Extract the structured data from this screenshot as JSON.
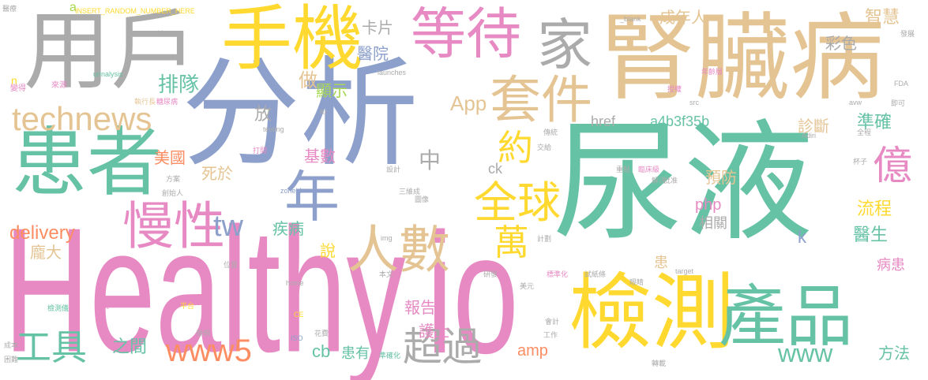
{
  "colors": {
    "gray": "#ababab",
    "teal": "#66c2a5",
    "pink": "#e78ac3",
    "yellow": "#ffd92f",
    "tan": "#e5c494",
    "blue": "#8da0cb",
    "orange": "#fc8d62",
    "green": "#a6d854"
  },
  "words": [
    {
      "text": "尿液",
      "color": "teal",
      "weight": 1
    },
    {
      "text": "分析",
      "color": "blue",
      "weight": 0.95
    },
    {
      "text": "Healthy",
      "color": "pink",
      "weight": 0.8
    },
    {
      "text": "io",
      "color": "pink",
      "weight": 0.8
    },
    {
      "text": "腎臟病",
      "color": "tan",
      "weight": 0.75
    },
    {
      "text": "用戶",
      "color": "gray",
      "weight": 0.7
    },
    {
      "text": "患者",
      "color": "teal",
      "weight": 0.65
    },
    {
      "text": "手機",
      "color": "yellow",
      "weight": 0.6
    },
    {
      "text": "檢測",
      "color": "yellow",
      "weight": 0.6
    },
    {
      "text": "產品",
      "color": "teal",
      "weight": 0.55
    },
    {
      "text": "等待",
      "color": "pink",
      "weight": 0.5
    },
    {
      "text": "家",
      "color": "gray",
      "weight": 0.45
    },
    {
      "text": "套件",
      "color": "tan",
      "weight": 0.45
    },
    {
      "text": "年",
      "color": "blue",
      "weight": 0.45
    },
    {
      "text": "人數",
      "color": "tan",
      "weight": 0.45
    },
    {
      "text": "慢性",
      "color": "pink",
      "weight": 0.4
    },
    {
      "text": "全球",
      "color": "yellow",
      "weight": 0.4
    },
    {
      "text": "technews",
      "color": "tan",
      "weight": 0.3
    },
    {
      "text": "億",
      "color": "pink",
      "weight": 0.3
    },
    {
      "text": "約",
      "color": "yellow",
      "weight": 0.3
    },
    {
      "text": "萬",
      "color": "yellow",
      "weight": 0.3
    },
    {
      "text": "超過",
      "color": "gray",
      "weight": 0.3
    },
    {
      "text": "www5",
      "color": "orange",
      "weight": 0.3
    },
    {
      "text": "工具",
      "color": "teal",
      "weight": 0.3
    },
    {
      "text": "www",
      "color": "teal",
      "weight": 0.25
    },
    {
      "text": "tw",
      "color": "blue",
      "weight": 0.22
    },
    {
      "text": "App",
      "color": "tan",
      "weight": 0.2
    },
    {
      "text": "中",
      "color": "gray",
      "weight": 0.2
    },
    {
      "text": "排隊",
      "color": "teal",
      "weight": 0.18
    },
    {
      "text": "delivery",
      "color": "orange",
      "weight": 0.18
    },
    {
      "text": "卡片",
      "color": "gray",
      "weight": 0.16
    },
    {
      "text": "醫院",
      "color": "blue",
      "weight": 0.16
    },
    {
      "text": "成年人",
      "color": "tan",
      "weight": 0.15
    },
    {
      "text": "彩色",
      "color": "gray",
      "weight": 0.15
    },
    {
      "text": "智慧",
      "color": "tan",
      "weight": 0.15
    },
    {
      "text": "做",
      "color": "tan",
      "weight": 0.15
    },
    {
      "text": "顯示",
      "color": "green",
      "weight": 0.14
    },
    {
      "text": "放",
      "color": "gray",
      "weight": 0.14
    },
    {
      "text": "美國",
      "color": "orange",
      "weight": 0.14
    },
    {
      "text": "死於",
      "color": "tan",
      "weight": 0.14
    },
    {
      "text": "疾病",
      "color": "teal",
      "weight": 0.14
    },
    {
      "text": "基數",
      "color": "pink",
      "weight": 0.13
    },
    {
      "text": "href",
      "color": "gray",
      "weight": 0.13
    },
    {
      "text": "a4b3f35b",
      "color": "teal",
      "weight": 0.13
    },
    {
      "text": "診斷",
      "color": "tan",
      "weight": 0.13
    },
    {
      "text": "準確",
      "color": "teal",
      "weight": 0.13
    },
    {
      "text": "預防",
      "color": "tan",
      "weight": 0.13
    },
    {
      "text": "php",
      "color": "pink",
      "weight": 0.13
    },
    {
      "text": "流程",
      "color": "yellow",
      "weight": 0.13
    },
    {
      "text": "醫生",
      "color": "teal",
      "weight": 0.13
    },
    {
      "text": "相關",
      "color": "gray",
      "weight": 0.12
    },
    {
      "text": "k",
      "color": "blue",
      "weight": 0.12
    },
    {
      "text": "說",
      "color": "yellow",
      "weight": 0.12
    },
    {
      "text": "龐大",
      "color": "tan",
      "weight": 0.12
    },
    {
      "text": "報告",
      "color": "pink",
      "weight": 0.12
    },
    {
      "text": "護士",
      "color": "pink",
      "weight": 0.12
    },
    {
      "text": "患",
      "color": "tan",
      "weight": 0.12
    },
    {
      "text": "病患",
      "color": "pink",
      "weight": 0.12
    },
    {
      "text": "之間",
      "color": "teal",
      "weight": 0.12
    },
    {
      "text": "cb",
      "color": "teal",
      "weight": 0.12
    },
    {
      "text": "患有",
      "color": "teal",
      "weight": 0.12
    },
    {
      "text": "amp",
      "color": "orange",
      "weight": 0.12
    },
    {
      "text": "方法",
      "color": "teal",
      "weight": 0.12
    },
    {
      "text": "ck",
      "color": "gray",
      "weight": 0.11
    },
    {
      "text": "a",
      "color": "green",
      "weight": 0.1
    },
    {
      "text": "n",
      "color": "yellow",
      "weight": 0.08
    },
    {
      "text": "INSERT_RANDOM_NUMBER_HERE",
      "color": "yellow",
      "weight": 0.05
    },
    {
      "text": "_blank",
      "color": "gray",
      "weight": 0.05
    },
    {
      "text": "urinalysis",
      "color": "teal",
      "weight": 0.05
    },
    {
      "text": "Yonatan",
      "color": "gray",
      "weight": 0.05
    },
    {
      "text": "launches",
      "color": "gray",
      "weight": 0.05
    },
    {
      "text": "testing",
      "color": "gray",
      "weight": 0.05
    },
    {
      "text": "zoneid",
      "color": "blue",
      "weight": 0.05
    },
    {
      "text": "FDA",
      "color": "gray",
      "weight": 0.05
    },
    {
      "text": "avw",
      "color": "gray",
      "weight": 0.05
    },
    {
      "text": "src",
      "color": "gray",
      "weight": 0.05
    },
    {
      "text": "Adiri",
      "color": "gray",
      "weight": 0.05
    },
    {
      "text": "target",
      "color": "gray",
      "weight": 0.05
    },
    {
      "text": "img",
      "color": "gray",
      "weight": 0.05
    },
    {
      "text": "home",
      "color": "gray",
      "weight": 0.05
    },
    {
      "text": "ISO",
      "color": "blue",
      "weight": 0.05
    },
    {
      "text": "CE",
      "color": "yellow",
      "weight": 0.05
    },
    {
      "text": "Kr",
      "color": "gray",
      "weight": 0.05
    },
    {
      "text": "醫療",
      "color": "gray",
      "weight": 0.05
    },
    {
      "text": "執行長",
      "color": "tan",
      "weight": 0.05
    },
    {
      "text": "糖尿病",
      "color": "pink",
      "weight": 0.05
    },
    {
      "text": "來源",
      "color": "pink",
      "weight": 0.05
    },
    {
      "text": "變得",
      "color": "pink",
      "weight": 0.05
    },
    {
      "text": "發展",
      "color": "gray",
      "weight": 0.05
    },
    {
      "text": "即可",
      "color": "gray",
      "weight": 0.05
    },
    {
      "text": "成本",
      "color": "gray",
      "weight": 0.05
    },
    {
      "text": "困難",
      "color": "gray",
      "weight": 0.05
    },
    {
      "text": "檢測儀",
      "color": "teal",
      "weight": 0.05
    },
    {
      "text": "系統",
      "color": "pink",
      "weight": 0.05
    },
    {
      "text": "平台",
      "color": "yellow",
      "weight": 0.05
    },
    {
      "text": "標準化",
      "color": "pink",
      "weight": 0.05
    },
    {
      "text": "試紙條",
      "color": "gray",
      "weight": 0.05
    },
    {
      "text": "準確化",
      "color": "teal",
      "weight": 0.05
    },
    {
      "text": "三維成",
      "color": "gray",
      "weight": 0.05
    },
    {
      "text": "臨床級",
      "color": "pink",
      "weight": 0.05
    },
    {
      "text": "創始人",
      "color": "gray",
      "weight": 0.05
    },
    {
      "text": "重點",
      "color": "gray",
      "weight": 0.05
    },
    {
      "text": "工作",
      "color": "gray",
      "weight": 0.05
    },
    {
      "text": "花費",
      "color": "gray",
      "weight": 0.05
    },
    {
      "text": "發明",
      "color": "gray",
      "weight": 0.05
    },
    {
      "text": "轉載",
      "color": "gray",
      "weight": 0.05
    },
    {
      "text": "研發",
      "color": "gray",
      "weight": 0.05
    },
    {
      "text": "本文",
      "color": "gray",
      "weight": 0.05
    },
    {
      "text": "計劃",
      "color": "gray",
      "weight": 0.05
    },
    {
      "text": "批准",
      "color": "gray",
      "weight": 0.05
    },
    {
      "text": "解決",
      "color": "gray",
      "weight": 0.05
    },
    {
      "text": "傳統",
      "color": "gray",
      "weight": 0.05
    },
    {
      "text": "打開",
      "color": "pink",
      "weight": 0.05
    },
    {
      "text": "設計",
      "color": "gray",
      "weight": 0.05
    },
    {
      "text": "方案",
      "color": "gray",
      "weight": 0.05
    },
    {
      "text": "交給",
      "color": "gray",
      "weight": 0.05
    },
    {
      "text": "圖像",
      "color": "gray",
      "weight": 0.05
    },
    {
      "text": "杯子",
      "color": "gray",
      "weight": 0.05
    },
    {
      "text": "全程",
      "color": "gray",
      "weight": 0.05
    },
    {
      "text": "年齡層",
      "color": "pink",
      "weight": 0.05
    },
    {
      "text": "授權",
      "color": "pink",
      "weight": 0.05
    },
    {
      "text": "位置",
      "color": "gray",
      "weight": 0.05
    },
    {
      "text": "眼睛",
      "color": "gray",
      "weight": 0.05
    },
    {
      "text": "美元",
      "color": "gray",
      "weight": 0.05
    },
    {
      "text": "會計",
      "color": "gray",
      "weight": 0.05
    }
  ]
}
